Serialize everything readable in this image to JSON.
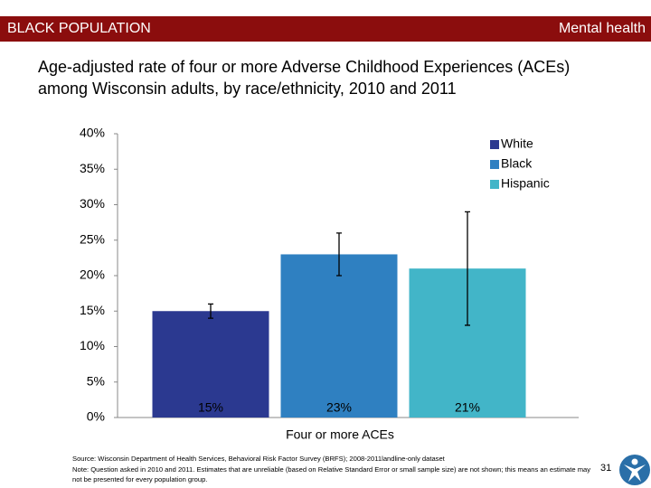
{
  "header": {
    "left": "BLACK POPULATION",
    "right": "Mental health"
  },
  "chart_data": {
    "type": "bar",
    "title": "Age-adjusted rate of four or more Adverse Childhood Experiences (ACEs) among Wisconsin adults, by race/ethnicity, 2010 and 2011",
    "categories": [
      "Four or more ACEs"
    ],
    "series": [
      {
        "name": "White",
        "color": "#2b3990",
        "values": [
          15
        ],
        "value_labels": [
          "15%"
        ],
        "ci": [
          [
            14,
            16
          ]
        ]
      },
      {
        "name": "Black",
        "color": "#2f80c1",
        "values": [
          23
        ],
        "value_labels": [
          "23%"
        ],
        "ci": [
          [
            20,
            26
          ]
        ]
      },
      {
        "name": "Hispanic",
        "color": "#42b5c8",
        "values": [
          21
        ],
        "value_labels": [
          "21%"
        ],
        "ci": [
          [
            13,
            29
          ]
        ]
      }
    ],
    "ylim": [
      0,
      40
    ],
    "yticks": [
      {
        "value": 0,
        "label": "0%"
      },
      {
        "value": 5,
        "label": "5%"
      },
      {
        "value": 10,
        "label": "10%"
      },
      {
        "value": 15,
        "label": "15%"
      },
      {
        "value": 20,
        "label": "20%"
      },
      {
        "value": 25,
        "label": "25%"
      },
      {
        "value": 30,
        "label": "30%"
      },
      {
        "value": 35,
        "label": "35%"
      },
      {
        "value": 40,
        "label": "40%"
      }
    ],
    "legend": "top-right"
  },
  "footer": {
    "source": "Source: Wisconsin Department of Health Services, Behavioral Risk Factor Survey (BRFS); 2008-2011landline-only dataset",
    "note": "Note: Question asked in 2010 and 2011. Estimates that are unreliable (based on Relative Standard Error or small sample size) are not shown; this means an estimate may not be presented for every population group.",
    "page": "31"
  }
}
